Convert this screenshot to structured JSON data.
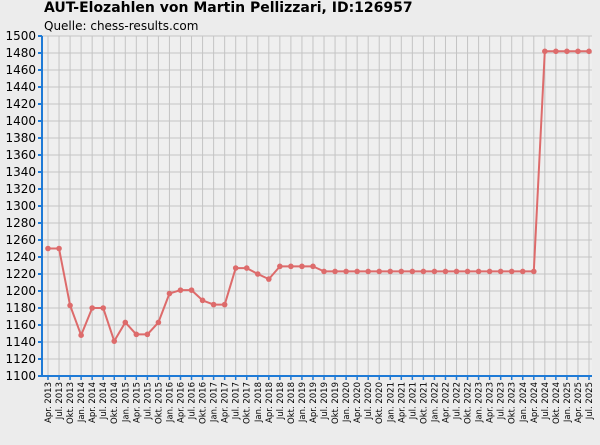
{
  "title": "AUT-Elozahlen von Martin Pellizzari, ID:126957",
  "subtitle": "Quelle: chess-results.com",
  "colors": {
    "line": "#dd6b6b",
    "grid": "#c4c4c4",
    "axis": "#1e7ad6",
    "background": "#ececec"
  },
  "chart_data": {
    "type": "line",
    "title": "AUT-Elozahlen von Martin Pellizzari, ID:126957",
    "subtitle": "Quelle: chess-results.com",
    "xlabel": "",
    "ylabel": "",
    "ylim": [
      1100,
      1500
    ],
    "yticks": [
      1100,
      1120,
      1140,
      1160,
      1180,
      1200,
      1220,
      1240,
      1260,
      1280,
      1300,
      1320,
      1340,
      1360,
      1380,
      1400,
      1420,
      1440,
      1460,
      1480,
      1500
    ],
    "grid": true,
    "legend": "none",
    "categories": [
      "Apr. 2013",
      "Jul. 2013",
      "Okt. 2013",
      "Jan. 2014",
      "Apr. 2014",
      "Jul. 2014",
      "Okt. 2014",
      "Jan. 2015",
      "Apr. 2015",
      "Jul. 2015",
      "Okt. 2015",
      "Jan. 2016",
      "Apr. 2016",
      "Jul. 2016",
      "Okt. 2016",
      "Jan. 2017",
      "Apr. 2017",
      "Jul. 2017",
      "Okt. 2017",
      "Jan. 2018",
      "Apr. 2018",
      "Jul. 2018",
      "Okt. 2018",
      "Jan. 2019",
      "Apr. 2019",
      "Jul. 2019",
      "Okt. 2019",
      "Jan. 2020",
      "Apr. 2020",
      "Jul. 2020",
      "Okt. 2020",
      "Jan. 2021",
      "Apr. 2021",
      "Jul. 2021",
      "Okt. 2021",
      "Jan. 2022",
      "Apr. 2022",
      "Jul. 2022",
      "Okt. 2022",
      "Jan. 2023",
      "Apr. 2023",
      "Jul. 2023",
      "Okt. 2023",
      "Jan. 2024",
      "Apr. 2024",
      "Jul. 2024",
      "Okt. 2024",
      "Jan. 2025",
      "Apr. 2025",
      "Jul. 2025"
    ],
    "values": [
      1250,
      1250,
      1183,
      1148,
      1180,
      1180,
      1141,
      1163,
      1149,
      1149,
      1163,
      1197,
      1201,
      1201,
      1189,
      1184,
      1184,
      1227,
      1227,
      1220,
      1214,
      1229,
      1229,
      1229,
      1229,
      1223,
      1223,
      1223,
      1223,
      1223,
      1223,
      1223,
      1223,
      1223,
      1223,
      1223,
      1223,
      1223,
      1223,
      1223,
      1223,
      1223,
      1223,
      1223,
      1223,
      1482,
      1482,
      1482,
      1482,
      1482
    ]
  }
}
